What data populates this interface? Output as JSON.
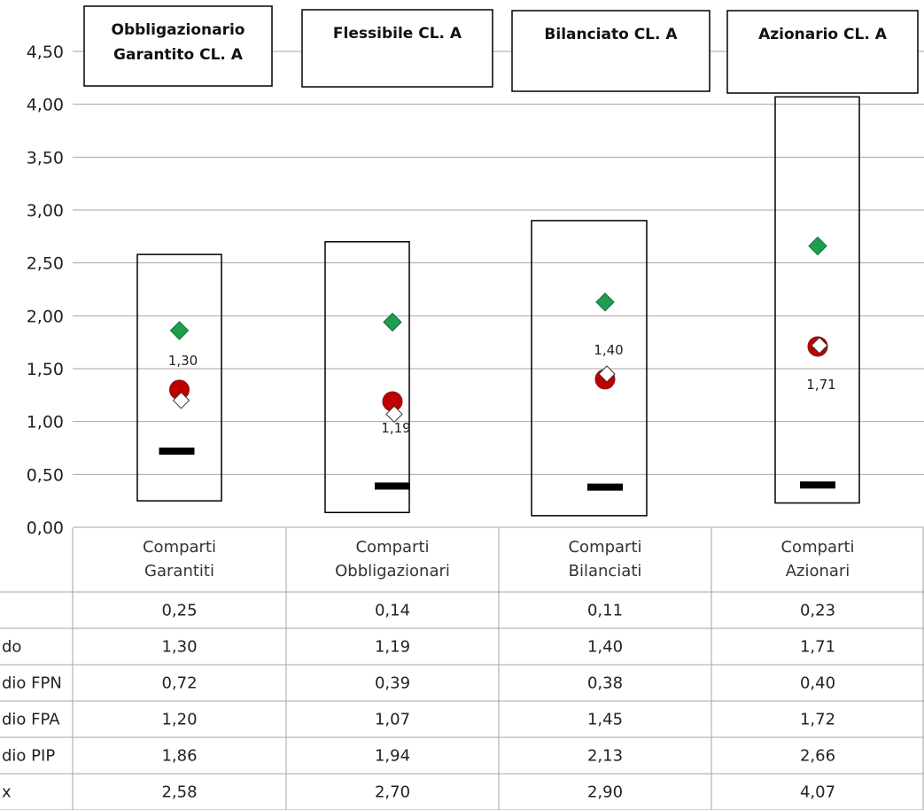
{
  "chart_data": {
    "type": "scatter",
    "yticks": [
      "4,50",
      "4,00",
      "3,50",
      "3,00",
      "2,50",
      "2,00",
      "1,50",
      "1,00",
      "0,50",
      "0,00"
    ],
    "ylim": [
      0,
      4.5
    ],
    "categories": [
      [
        "Comparti",
        "Garantiti"
      ],
      [
        "Comparti",
        "Obbligazionari"
      ],
      [
        "Comparti",
        "Bilanciati"
      ],
      [
        "Comparti",
        "Azionari"
      ]
    ],
    "headers": [
      [
        "Obbligazionario",
        "Garantito CL. A"
      ],
      [
        "Flessibile CL. A"
      ],
      [
        "Bilanciato CL. A"
      ],
      [
        "Azionario CL. A"
      ]
    ],
    "rows": [
      {
        "label": "",
        "values": [
          "0,25",
          "0,14",
          "0,11",
          "0,23"
        ]
      },
      {
        "label": "do",
        "values": [
          "1,30",
          "1,19",
          "1,40",
          "1,71"
        ]
      },
      {
        "label": "dio FPN",
        "values": [
          "0,72",
          "0,39",
          "0,38",
          "0,40"
        ]
      },
      {
        "label": "dio FPA",
        "values": [
          "1,20",
          "1,07",
          "1,45",
          "1,72"
        ]
      },
      {
        "label": "dio PIP",
        "values": [
          "1,86",
          "1,94",
          "2,13",
          "2,66"
        ]
      },
      {
        "label": "x",
        "values": [
          "2,58",
          "2,70",
          "2,90",
          "4,07"
        ]
      }
    ],
    "min": [
      0.25,
      0.14,
      0.11,
      0.23
    ],
    "fund": [
      1.3,
      1.19,
      1.4,
      1.71
    ],
    "fpn": [
      0.72,
      0.39,
      0.38,
      0.4
    ],
    "fpa": [
      1.2,
      1.07,
      1.45,
      1.72
    ],
    "pip": [
      1.86,
      1.94,
      2.13,
      2.66
    ],
    "max": [
      2.58,
      2.7,
      2.9,
      4.07
    ],
    "fund_labels": [
      "1,30",
      "1,19",
      "1,40",
      "1,71"
    ],
    "colors": {
      "fund": "#c00000",
      "fund_edge": "#7f1d1d",
      "pip": "#1e9e50",
      "fpa": "#ffffff",
      "fpn": "#000000",
      "grid": "#a6a6a6"
    }
  }
}
